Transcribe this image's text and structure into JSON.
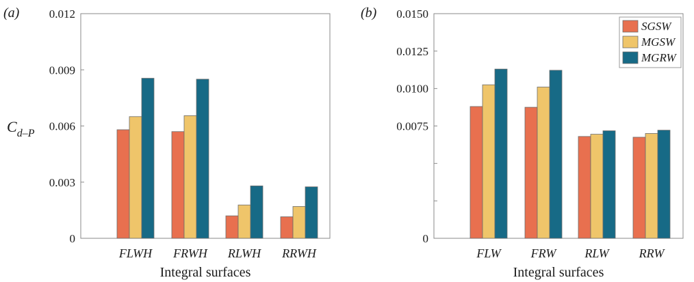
{
  "figure": {
    "ylabel_main": "C",
    "ylabel_sub": "d–P"
  },
  "legend": {
    "entries": [
      "SGSW",
      "MGSW",
      "MGRW"
    ]
  },
  "colors": {
    "SGSW": "#e8704f",
    "MGSW": "#efc56a",
    "MGRW": "#176a86",
    "axis": "#8a8a8a",
    "bar_edge": "#6b6b6b"
  },
  "chart_data": [
    {
      "panel_label": "(a)",
      "type": "bar",
      "xlabel": "Integral surfaces",
      "ylabel": "C_{d–P}",
      "categories": [
        "FLWH",
        "FRWH",
        "RLWH",
        "RRWH"
      ],
      "ylim": [
        0,
        0.012
      ],
      "yticks": [
        0,
        0.003,
        0.006,
        0.009,
        0.012
      ],
      "ytick_labels": [
        "0",
        "0.003",
        "0.006",
        "0.009",
        "0.012"
      ],
      "grid": false,
      "legend": false,
      "series": [
        {
          "name": "SGSW",
          "values": [
            0.0058,
            0.0057,
            0.0012,
            0.00115
          ]
        },
        {
          "name": "MGSW",
          "values": [
            0.0065,
            0.00655,
            0.00178,
            0.0017
          ]
        },
        {
          "name": "MGRW",
          "values": [
            0.00855,
            0.0085,
            0.0028,
            0.00275
          ]
        }
      ]
    },
    {
      "panel_label": "(b)",
      "type": "bar",
      "xlabel": "Integral surfaces",
      "ylabel": "",
      "categories": [
        "FLW",
        "FRW",
        "RLW",
        "RRW"
      ],
      "ylim": [
        0,
        0.015
      ],
      "yticks": [
        0,
        0.0025,
        0.005,
        0.0075,
        0.01,
        0.0125,
        0.015
      ],
      "ytick_labels": [
        "0",
        "",
        "",
        "0.0075",
        "0.0100",
        "0.0125",
        "0.0150"
      ],
      "grid": false,
      "legend": "top-right",
      "series": [
        {
          "name": "SGSW",
          "values": [
            0.0088,
            0.00875,
            0.0068,
            0.00675
          ]
        },
        {
          "name": "MGSW",
          "values": [
            0.01025,
            0.0101,
            0.00695,
            0.007
          ]
        },
        {
          "name": "MGRW",
          "values": [
            0.0113,
            0.01122,
            0.00718,
            0.00722
          ]
        }
      ]
    }
  ]
}
